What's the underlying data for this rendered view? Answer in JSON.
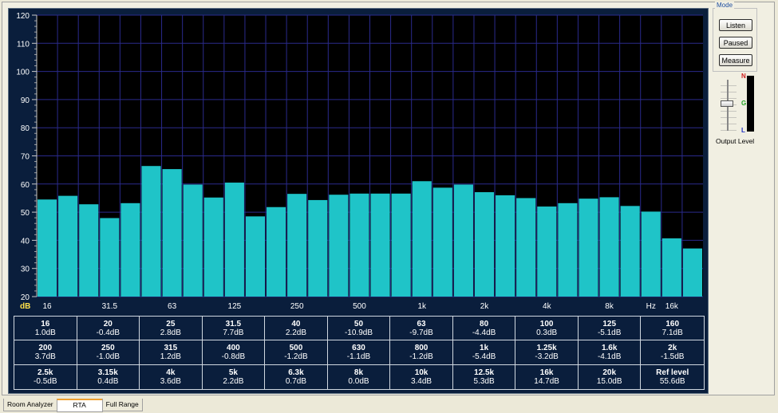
{
  "chart_data": {
    "type": "bar",
    "ylim": [
      20,
      120
    ],
    "y_ticks": [
      20,
      30,
      40,
      50,
      60,
      70,
      80,
      90,
      100,
      110,
      120
    ],
    "y_unit_label": "dB",
    "x_unit_label": "Hz",
    "x_tick_labels": [
      "16",
      "31.5",
      "63",
      "125",
      "250",
      "500",
      "1k",
      "2k",
      "4k",
      "8k",
      "16k"
    ],
    "categories": [
      "16",
      "20",
      "25",
      "31.5",
      "40",
      "50",
      "63",
      "80",
      "100",
      "125",
      "160",
      "200",
      "250",
      "315",
      "400",
      "500",
      "630",
      "800",
      "1k",
      "1.25k",
      "1.6k",
      "2k",
      "2.5k",
      "3.15k",
      "4k",
      "5k",
      "6.3k",
      "8k",
      "10k",
      "12.5k",
      "16k",
      "20k"
    ],
    "values": [
      54.5,
      55.8,
      52.8,
      47.9,
      53.2,
      66.4,
      65.3,
      59.8,
      55.2,
      60.5,
      48.5,
      51.8,
      56.5,
      54.3,
      56.2,
      56.6,
      56.6,
      56.6,
      61.0,
      58.7,
      59.8,
      57.1,
      56.0,
      55.0,
      52.0,
      53.2,
      54.8,
      55.3,
      52.2,
      50.2,
      40.7,
      37.1
    ],
    "grid": true,
    "bar_color": "#1fc4c8",
    "background": "#000000",
    "grid_color": "#2a2a8c"
  },
  "table": [
    {
      "freq": "16",
      "val": "1.0dB"
    },
    {
      "freq": "20",
      "val": "-0.4dB"
    },
    {
      "freq": "25",
      "val": "2.8dB"
    },
    {
      "freq": "31.5",
      "val": "7.7dB"
    },
    {
      "freq": "40",
      "val": "2.2dB"
    },
    {
      "freq": "50",
      "val": "-10.9dB"
    },
    {
      "freq": "63",
      "val": "-9.7dB"
    },
    {
      "freq": "80",
      "val": "-4.4dB"
    },
    {
      "freq": "100",
      "val": "0.3dB"
    },
    {
      "freq": "125",
      "val": "-5.1dB"
    },
    {
      "freq": "160",
      "val": "7.1dB"
    },
    {
      "freq": "200",
      "val": "3.7dB"
    },
    {
      "freq": "250",
      "val": "-1.0dB"
    },
    {
      "freq": "315",
      "val": "1.2dB"
    },
    {
      "freq": "400",
      "val": "-0.8dB"
    },
    {
      "freq": "500",
      "val": "-1.2dB"
    },
    {
      "freq": "630",
      "val": "-1.1dB"
    },
    {
      "freq": "800",
      "val": "-1.2dB"
    },
    {
      "freq": "1k",
      "val": "-5.4dB"
    },
    {
      "freq": "1.25k",
      "val": "-3.2dB"
    },
    {
      "freq": "1.6k",
      "val": "-4.1dB"
    },
    {
      "freq": "2k",
      "val": "-1.5dB"
    },
    {
      "freq": "2.5k",
      "val": "-0.5dB"
    },
    {
      "freq": "3.15k",
      "val": "0.4dB"
    },
    {
      "freq": "4k",
      "val": "3.6dB"
    },
    {
      "freq": "5k",
      "val": "2.2dB"
    },
    {
      "freq": "6.3k",
      "val": "0.7dB"
    },
    {
      "freq": "8k",
      "val": "0.0dB"
    },
    {
      "freq": "10k",
      "val": "3.4dB"
    },
    {
      "freq": "12.5k",
      "val": "5.3dB"
    },
    {
      "freq": "16k",
      "val": "14.7dB"
    },
    {
      "freq": "20k",
      "val": "15.0dB"
    },
    {
      "freq": "Ref level",
      "val": "55.6dB"
    }
  ],
  "mode": {
    "title": "Mode",
    "listen_label": "Listen",
    "paused_label": "Paused",
    "measure_label": "Measure"
  },
  "meter": {
    "n_label": "N",
    "g_label": "G",
    "l_label": "L",
    "n_color": "#d02020",
    "g_color": "#20a020",
    "l_color": "#2030c0",
    "level": 0
  },
  "output_level_label": "Output Level",
  "tabs": [
    {
      "label": "Room Analyzer",
      "active": false
    },
    {
      "label": "RTA",
      "active": true
    },
    {
      "label": "Full Range",
      "active": false
    }
  ]
}
